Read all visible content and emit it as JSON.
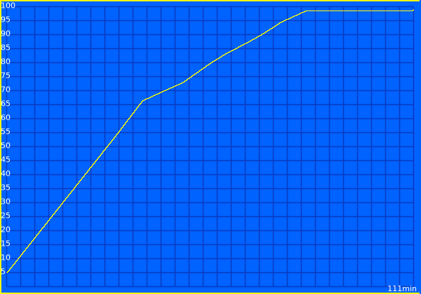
{
  "chart_data": {
    "type": "line",
    "title": "",
    "xlabel": "",
    "ylabel": "",
    "xlim": [
      0,
      111
    ],
    "ylim": [
      0,
      100
    ],
    "x_end_label": "111min",
    "y_ticks": [
      5,
      10,
      15,
      20,
      25,
      30,
      35,
      40,
      45,
      50,
      55,
      60,
      65,
      70,
      75,
      80,
      85,
      90,
      95,
      100
    ],
    "grid": true,
    "x_grid_divisions": 29,
    "series": [
      {
        "x": [
          0,
          10,
          20,
          30,
          37,
          42,
          48,
          55.6,
          60,
          65.2,
          70,
          74.7,
          78,
          81.4,
          90,
          100,
          110.5,
          111
        ],
        "y": [
          5,
          21.5,
          38,
          54.5,
          66.5,
          69.5,
          73,
          80,
          83.5,
          87,
          90.5,
          94.5,
          96.5,
          98.5,
          98.5,
          98.5,
          98.5,
          99
        ]
      }
    ],
    "colors": {
      "background": "#0062ff",
      "grid": "#0a3bbf",
      "line": "#ffff00",
      "frame": "#ffff00",
      "text": "#ffffff"
    }
  }
}
